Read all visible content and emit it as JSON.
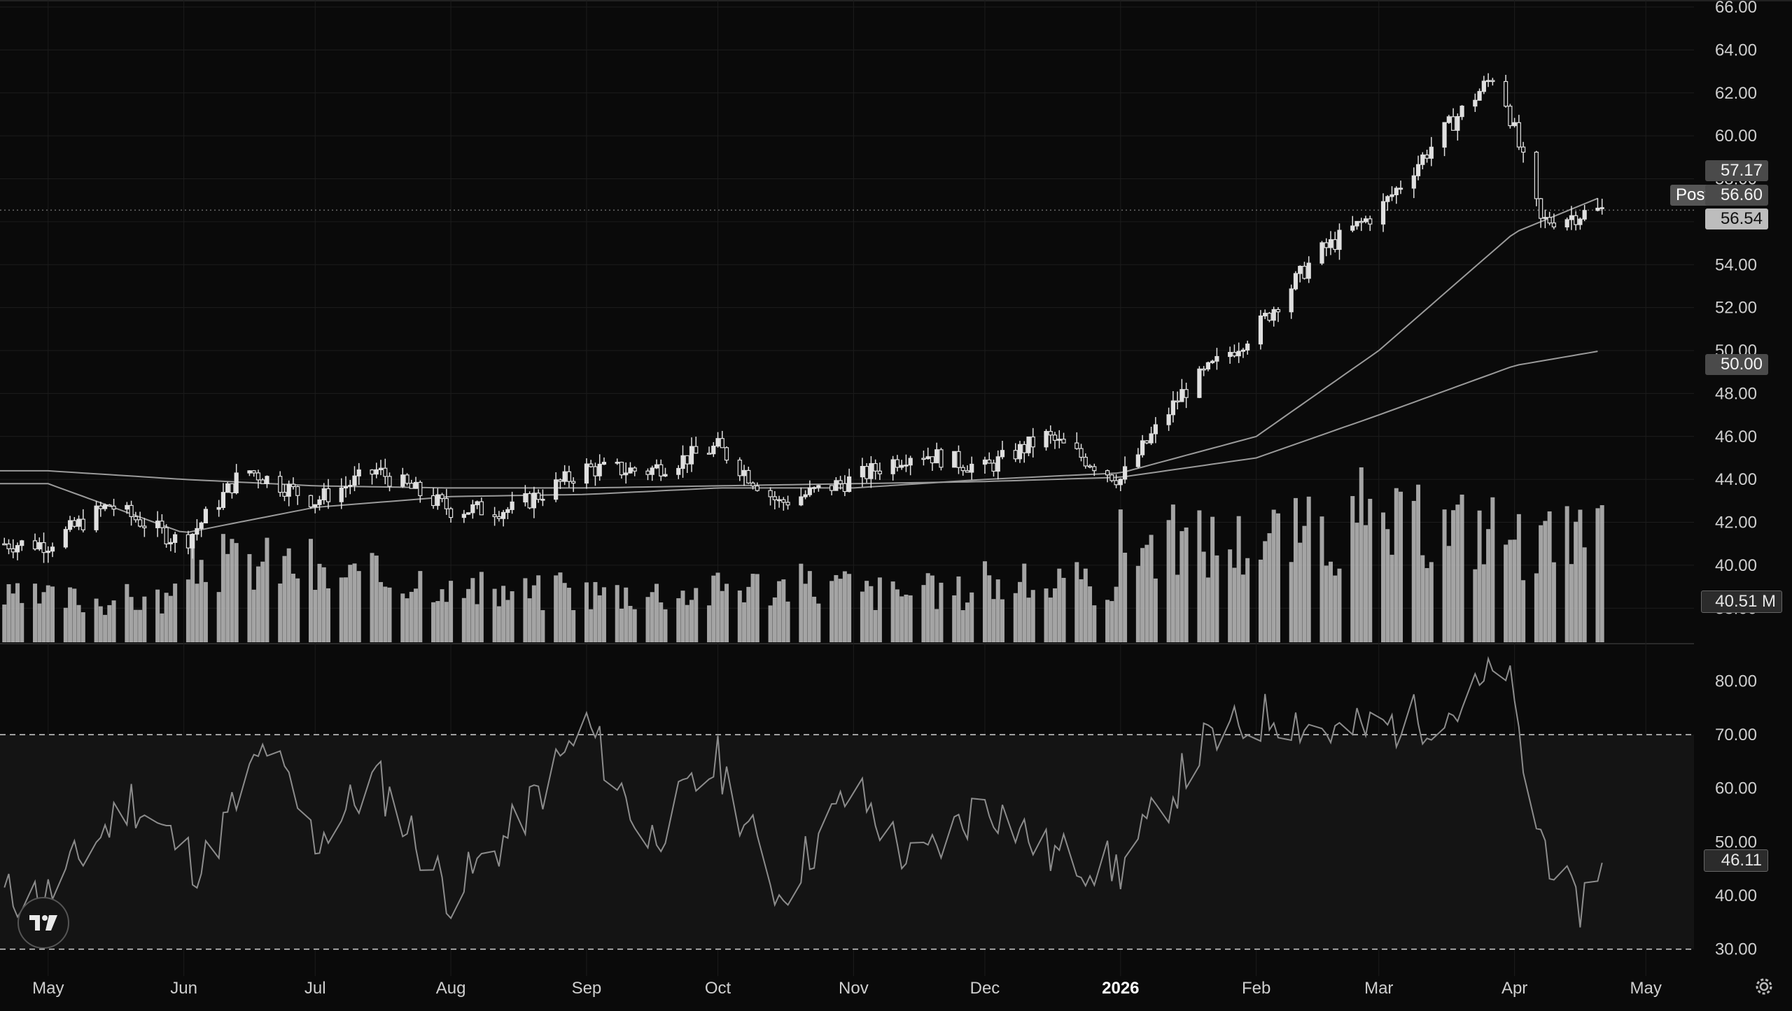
{
  "theme": {
    "background": "#0a0a0a",
    "grid": "#1c1c1c",
    "candle": "#e0e0e0",
    "ma": "#9a9a9a",
    "volume": "#bfbfbf",
    "rsi": "#8c8c8c"
  },
  "price_labels": {
    "last": "56.54",
    "post": "56.60",
    "post_tag": "Post",
    "ma_short": "57.17",
    "ma_long": "50.00",
    "volume": "40.51 M",
    "rsi": "46.11"
  },
  "chart_data": [
    {
      "type": "candlestick",
      "title": "",
      "ylim": [
        37,
        66
      ],
      "y_ticks": [
        "66.00",
        "64.00",
        "62.00",
        "60.00",
        "58.00",
        "56.00",
        "54.00",
        "52.00",
        "50.00",
        "48.00",
        "46.00",
        "44.00",
        "42.00",
        "40.00",
        "38.00"
      ],
      "x_ticks": [
        "May",
        "Jun",
        "Jul",
        "Aug",
        "Sep",
        "Oct",
        "Nov",
        "Dec",
        "2026",
        "Feb",
        "Mar",
        "Apr",
        "May"
      ],
      "series": [
        {
          "kind": "close_path",
          "x": [
            "2025-05-01",
            "2025-05-15",
            "2025-06-01",
            "2025-06-15",
            "2025-07-01",
            "2025-07-15",
            "2025-08-01",
            "2025-08-15",
            "2025-09-01",
            "2025-09-15",
            "2025-10-01",
            "2025-10-15",
            "2025-11-01",
            "2025-11-15",
            "2025-12-01",
            "2025-12-15",
            "2026-01-01",
            "2026-01-15",
            "2026-02-01",
            "2026-02-15",
            "2026-03-01",
            "2026-03-15",
            "2026-03-28",
            "2026-04-07",
            "2026-04-21"
          ],
          "y": [
            41.0,
            42.8,
            41.0,
            44.5,
            43.0,
            44.4,
            42.6,
            42.6,
            44.5,
            44.4,
            45.5,
            42.9,
            44.0,
            45.3,
            44.5,
            46.0,
            44.0,
            48.0,
            51.0,
            54.5,
            56.5,
            60.0,
            63.0,
            56.0,
            56.54
          ]
        }
      ]
    },
    {
      "type": "line",
      "series": [
        {
          "name": "",
          "role": "moving-average-short",
          "x": [
            "2025-05-01",
            "2025-06-01",
            "2025-07-01",
            "2025-08-01",
            "2025-09-01",
            "2025-10-01",
            "2025-11-01",
            "2025-12-01",
            "2026-01-01",
            "2026-02-01",
            "2026-03-01",
            "2026-04-01",
            "2026-04-21"
          ],
          "y": [
            43.8,
            41.5,
            42.7,
            43.2,
            43.3,
            43.6,
            43.6,
            44.0,
            44.3,
            46.0,
            50.0,
            55.5,
            57.17
          ]
        },
        {
          "name": "",
          "role": "moving-average-long",
          "x": [
            "2025-05-01",
            "2025-06-01",
            "2025-07-01",
            "2025-08-01",
            "2025-09-01",
            "2025-10-01",
            "2025-11-01",
            "2025-12-01",
            "2026-01-01",
            "2026-02-01",
            "2026-03-01",
            "2026-04-01",
            "2026-04-21"
          ],
          "y": [
            44.4,
            44.0,
            43.7,
            43.6,
            43.6,
            43.7,
            43.8,
            43.9,
            44.1,
            45.0,
            47.0,
            49.3,
            50.0
          ]
        }
      ]
    },
    {
      "type": "bar",
      "series": [
        {
          "name": "",
          "role": "volume",
          "x": [
            "2025-05",
            "2025-06",
            "2025-07",
            "2025-08",
            "2025-09",
            "2025-10",
            "2025-11",
            "2025-12",
            "2026-01",
            "2026-02",
            "2026-03",
            "2026-04"
          ],
          "values": [
            0.3,
            0.55,
            0.45,
            0.35,
            0.35,
            0.4,
            0.35,
            0.4,
            0.7,
            0.75,
            0.8,
            0.7
          ],
          "value_unit": "relative",
          "last": "40.51 M"
        }
      ]
    },
    {
      "type": "line",
      "ylim": [
        25,
        85
      ],
      "y_ticks": [
        "80.00",
        "70.00",
        "60.00",
        "50.00",
        "40.00",
        "30.00"
      ],
      "reference_lines": [
        70,
        30
      ],
      "series": [
        {
          "name": "",
          "role": "rsi",
          "x": [
            "2025-05-01",
            "2025-05-20",
            "2025-06-05",
            "2025-06-20",
            "2025-07-01",
            "2025-07-15",
            "2025-08-01",
            "2025-08-15",
            "2025-09-01",
            "2025-09-15",
            "2025-10-01",
            "2025-10-15",
            "2025-11-01",
            "2025-11-15",
            "2025-12-01",
            "2025-12-15",
            "2026-01-01",
            "2026-01-20",
            "2026-02-05",
            "2026-02-20",
            "2026-03-05",
            "2026-03-20",
            "2026-03-30",
            "2026-04-05",
            "2026-04-15",
            "2026-04-21"
          ],
          "y": [
            40,
            58,
            45,
            68,
            50,
            62,
            40,
            52,
            72,
            50,
            65,
            40,
            60,
            45,
            58,
            48,
            45,
            68,
            74,
            70,
            72,
            75,
            83,
            55,
            37,
            46.11
          ]
        }
      ]
    }
  ]
}
